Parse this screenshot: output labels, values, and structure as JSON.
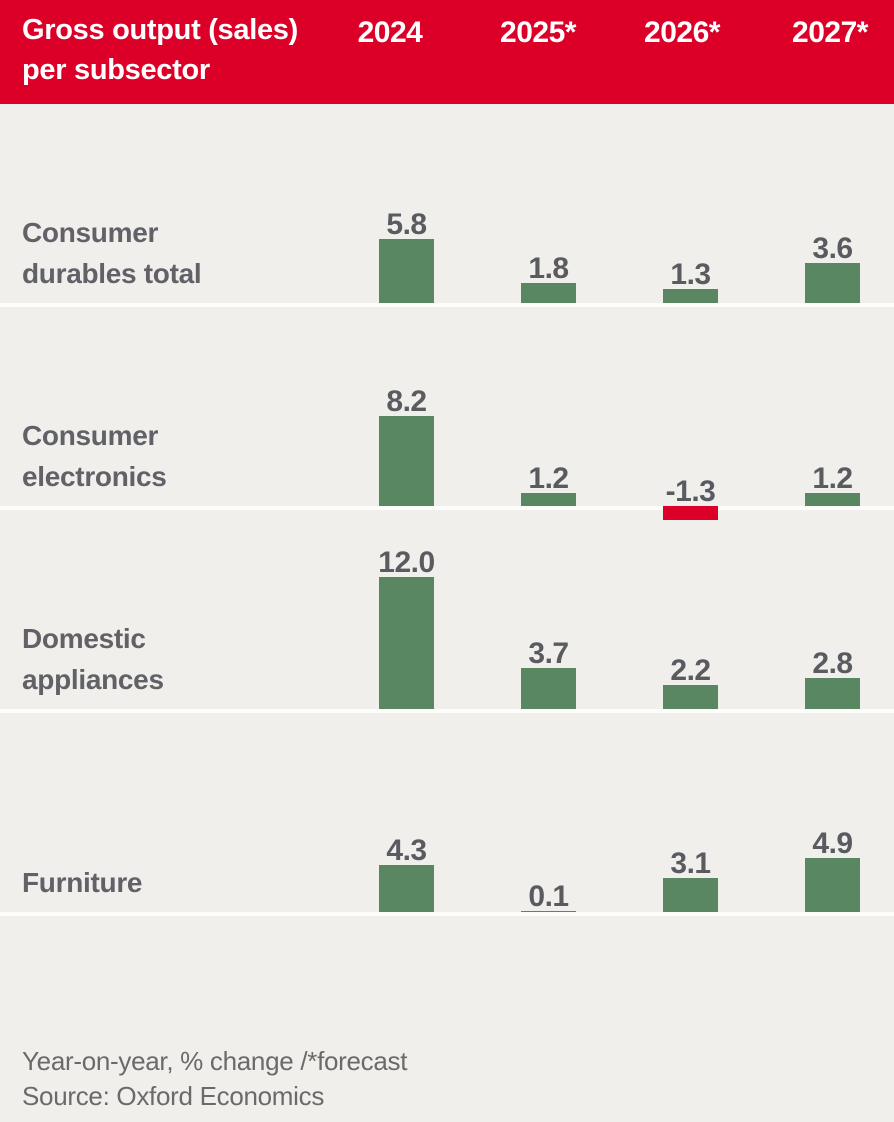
{
  "header": {
    "title": "Gross output (sales)\nper subsector"
  },
  "chart_data": {
    "type": "bar",
    "title": "Gross output (sales) per subsector",
    "unit": "Year-on-year, % change",
    "forecast_marker": "*",
    "columns": [
      "2024",
      "2025*",
      "2026*",
      "2027*"
    ],
    "categories": [
      "Consumer durables total",
      "Consumer electronics",
      "Domestic appliances",
      "Furniture"
    ],
    "series": [
      {
        "name": "Consumer durables total",
        "label_lines": [
          "Consumer",
          "durables total"
        ],
        "values": [
          5.8,
          1.8,
          1.3,
          3.6
        ]
      },
      {
        "name": "Consumer electronics",
        "label_lines": [
          "Consumer",
          "electronics"
        ],
        "values": [
          8.2,
          1.2,
          -1.3,
          1.2
        ]
      },
      {
        "name": "Domestic appliances",
        "label_lines": [
          "Domestic",
          "appliances"
        ],
        "values": [
          12.0,
          3.7,
          2.2,
          2.8
        ]
      },
      {
        "name": "Furniture",
        "label_lines": [
          "Furniture"
        ],
        "values": [
          4.3,
          0.1,
          3.1,
          4.9
        ]
      }
    ],
    "colors": {
      "positive": "#598761",
      "negative": "#dc0028",
      "header_bg": "#dc0028",
      "background": "#f1efec",
      "value_text": "#5a5b60"
    },
    "legend_position": "none",
    "grid": false,
    "value_labels": "above_bars"
  },
  "footer": {
    "note": "Year-on-year, % change /*forecast",
    "source": "Source: Oxford Economics"
  }
}
